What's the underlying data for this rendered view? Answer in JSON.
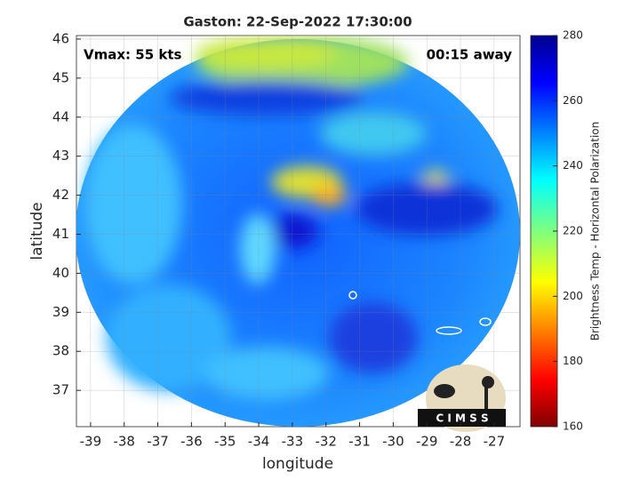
{
  "title": "Gaston: 22-Sep-2022 17:30:00",
  "annotations": {
    "left": "Vmax: 55 kts",
    "right": "00:15 away"
  },
  "x_axis": {
    "label": "longitude",
    "lim": [
      -39.42,
      -26.23
    ],
    "ticks": [
      -39,
      -38,
      -37,
      -36,
      -35,
      -34,
      -33,
      -32,
      -31,
      -30,
      -29,
      -28,
      -27
    ]
  },
  "y_axis": {
    "label": "latitude",
    "lim": [
      36.07,
      46.09
    ],
    "ticks": [
      37,
      38,
      39,
      40,
      41,
      42,
      43,
      44,
      45,
      46
    ]
  },
  "colorbar": {
    "label": "Brightness Temp - Horizontal Polarization",
    "lim": [
      160,
      280
    ],
    "ticks": [
      160,
      180,
      200,
      220,
      240,
      260,
      280
    ]
  },
  "logo": {
    "text": "C I M S S"
  }
}
